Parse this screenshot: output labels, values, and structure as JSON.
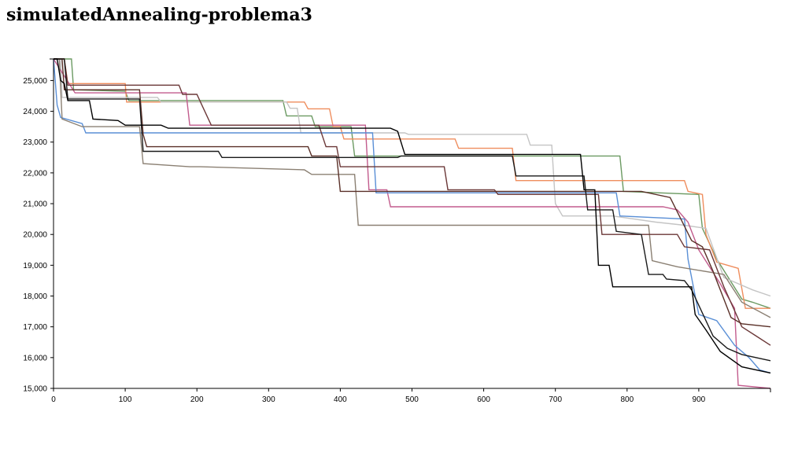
{
  "page": {
    "title": "simulatedAnnealing-problema3"
  },
  "chart_data": {
    "type": "line",
    "title": "simulatedAnnealing-problema3",
    "xlabel": "",
    "ylabel": "",
    "xlim": [
      0,
      1000
    ],
    "ylim": [
      15000,
      25700
    ],
    "grid": false,
    "x_ticks": [
      0,
      100,
      200,
      300,
      400,
      500,
      600,
      700,
      800,
      900
    ],
    "y_ticks": [
      15000,
      16000,
      17000,
      18000,
      19000,
      20000,
      21000,
      22000,
      23000,
      24000,
      25000
    ],
    "x_tick_labels": [
      "0",
      "100",
      "200",
      "300",
      "400",
      "500",
      "600",
      "700",
      "800",
      "900"
    ],
    "y_tick_labels": [
      "15,000",
      "16,000",
      "17,000",
      "18,000",
      "19,000",
      "20,000",
      "21,000",
      "22,000",
      "23,000",
      "24,000",
      "25,000"
    ],
    "series": [
      {
        "color": "#6b9a62",
        "points": [
          [
            0,
            25700
          ],
          [
            25,
            25700
          ],
          [
            28,
            24700
          ],
          [
            100,
            24650
          ],
          [
            105,
            24350
          ],
          [
            180,
            24350
          ],
          [
            320,
            24350
          ],
          [
            325,
            23850
          ],
          [
            360,
            23850
          ],
          [
            365,
            23500
          ],
          [
            415,
            23500
          ],
          [
            420,
            22550
          ],
          [
            790,
            22550
          ],
          [
            795,
            21400
          ],
          [
            900,
            21300
          ],
          [
            905,
            20200
          ],
          [
            925,
            19200
          ],
          [
            960,
            17900
          ],
          [
            975,
            17800
          ],
          [
            1000,
            17600
          ]
        ]
      },
      {
        "color": "#ef8d5d",
        "points": [
          [
            0,
            25700
          ],
          [
            15,
            25700
          ],
          [
            20,
            24900
          ],
          [
            100,
            24900
          ],
          [
            102,
            24300
          ],
          [
            350,
            24300
          ],
          [
            355,
            24080
          ],
          [
            385,
            24080
          ],
          [
            390,
            23500
          ],
          [
            400,
            23500
          ],
          [
            405,
            23100
          ],
          [
            560,
            23100
          ],
          [
            565,
            22800
          ],
          [
            640,
            22800
          ],
          [
            645,
            21750
          ],
          [
            880,
            21750
          ],
          [
            885,
            21400
          ],
          [
            905,
            21300
          ],
          [
            910,
            20000
          ],
          [
            925,
            19100
          ],
          [
            955,
            18900
          ],
          [
            965,
            17600
          ],
          [
            1000,
            17600
          ]
        ]
      },
      {
        "color": "#c4c4c4",
        "points": [
          [
            0,
            25700
          ],
          [
            10,
            25700
          ],
          [
            12,
            24450
          ],
          [
            145,
            24450
          ],
          [
            150,
            24300
          ],
          [
            325,
            24300
          ],
          [
            330,
            24100
          ],
          [
            340,
            24100
          ],
          [
            345,
            23300
          ],
          [
            490,
            23300
          ],
          [
            495,
            23250
          ],
          [
            660,
            23250
          ],
          [
            665,
            22900
          ],
          [
            695,
            22900
          ],
          [
            700,
            21000
          ],
          [
            710,
            20600
          ],
          [
            775,
            20600
          ],
          [
            780,
            20600
          ],
          [
            840,
            20400
          ],
          [
            880,
            20300
          ],
          [
            910,
            20200
          ],
          [
            935,
            18600
          ],
          [
            975,
            18200
          ],
          [
            1000,
            18000
          ]
        ]
      },
      {
        "color": "#c25c8d",
        "points": [
          [
            0,
            25700
          ],
          [
            30,
            24600
          ],
          [
            185,
            24600
          ],
          [
            190,
            23550
          ],
          [
            435,
            23550
          ],
          [
            440,
            21450
          ],
          [
            465,
            21450
          ],
          [
            470,
            20900
          ],
          [
            850,
            20900
          ],
          [
            870,
            20800
          ],
          [
            885,
            20400
          ],
          [
            900,
            19500
          ],
          [
            930,
            18400
          ],
          [
            950,
            17600
          ],
          [
            955,
            15100
          ],
          [
            1000,
            15000
          ]
        ]
      },
      {
        "color": "#5a8fd6",
        "points": [
          [
            0,
            25700
          ],
          [
            5,
            24200
          ],
          [
            10,
            23800
          ],
          [
            40,
            23600
          ],
          [
            45,
            23300
          ],
          [
            445,
            23300
          ],
          [
            450,
            21350
          ],
          [
            785,
            21350
          ],
          [
            790,
            20600
          ],
          [
            880,
            20500
          ],
          [
            885,
            19200
          ],
          [
            900,
            17400
          ],
          [
            925,
            17200
          ],
          [
            950,
            16400
          ],
          [
            970,
            16000
          ],
          [
            985,
            15600
          ],
          [
            1000,
            15500
          ]
        ]
      },
      {
        "color": "#8b8073",
        "points": [
          [
            0,
            25700
          ],
          [
            8,
            25700
          ],
          [
            12,
            23750
          ],
          [
            40,
            23500
          ],
          [
            120,
            23500
          ],
          [
            125,
            22300
          ],
          [
            190,
            22200
          ],
          [
            205,
            22200
          ],
          [
            350,
            22100
          ],
          [
            360,
            21950
          ],
          [
            420,
            21950
          ],
          [
            425,
            20300
          ],
          [
            830,
            20300
          ],
          [
            835,
            19150
          ],
          [
            870,
            18950
          ],
          [
            935,
            18700
          ],
          [
            960,
            17800
          ],
          [
            1000,
            17300
          ]
        ]
      },
      {
        "color": "#6b3838",
        "points": [
          [
            0,
            25700
          ],
          [
            15,
            25700
          ],
          [
            20,
            24850
          ],
          [
            175,
            24850
          ],
          [
            180,
            24550
          ],
          [
            200,
            24550
          ],
          [
            220,
            23550
          ],
          [
            370,
            23550
          ],
          [
            380,
            22850
          ],
          [
            395,
            22850
          ],
          [
            400,
            22200
          ],
          [
            545,
            22200
          ],
          [
            550,
            21450
          ],
          [
            615,
            21450
          ],
          [
            620,
            21300
          ],
          [
            760,
            21300
          ],
          [
            765,
            20000
          ],
          [
            870,
            20000
          ],
          [
            880,
            19600
          ],
          [
            915,
            19500
          ],
          [
            935,
            18300
          ],
          [
            960,
            17000
          ],
          [
            980,
            16700
          ],
          [
            1000,
            16400
          ]
        ]
      },
      {
        "color": "#5a3028",
        "points": [
          [
            0,
            25700
          ],
          [
            12,
            25700
          ],
          [
            15,
            24700
          ],
          [
            40,
            24700
          ],
          [
            120,
            24700
          ],
          [
            125,
            23250
          ],
          [
            130,
            22850
          ],
          [
            355,
            22850
          ],
          [
            360,
            22550
          ],
          [
            395,
            22550
          ],
          [
            400,
            21400
          ],
          [
            510,
            21400
          ],
          [
            600,
            21400
          ],
          [
            820,
            21400
          ],
          [
            860,
            21200
          ],
          [
            890,
            19800
          ],
          [
            905,
            19600
          ],
          [
            920,
            18800
          ],
          [
            945,
            17300
          ],
          [
            960,
            17100
          ],
          [
            1000,
            17000
          ]
        ]
      },
      {
        "color": "#1a1a1a",
        "points": [
          [
            0,
            25700
          ],
          [
            15,
            25700
          ],
          [
            20,
            24400
          ],
          [
            120,
            24400
          ],
          [
            125,
            22700
          ],
          [
            230,
            22700
          ],
          [
            235,
            22500
          ],
          [
            280,
            22500
          ],
          [
            400,
            22500
          ],
          [
            480,
            22500
          ],
          [
            485,
            22550
          ],
          [
            640,
            22550
          ],
          [
            645,
            21900
          ],
          [
            740,
            21900
          ],
          [
            745,
            20800
          ],
          [
            780,
            20800
          ],
          [
            785,
            20100
          ],
          [
            820,
            20000
          ],
          [
            830,
            18700
          ],
          [
            850,
            18700
          ],
          [
            855,
            18550
          ],
          [
            880,
            18500
          ],
          [
            890,
            18200
          ],
          [
            920,
            16700
          ],
          [
            940,
            16300
          ],
          [
            960,
            16100
          ],
          [
            1000,
            15900
          ]
        ]
      },
      {
        "color": "#000000",
        "points": [
          [
            0,
            25700
          ],
          [
            5,
            25700
          ],
          [
            10,
            25000
          ],
          [
            15,
            24900
          ],
          [
            20,
            24350
          ],
          [
            50,
            24350
          ],
          [
            55,
            23750
          ],
          [
            90,
            23700
          ],
          [
            100,
            23550
          ],
          [
            150,
            23550
          ],
          [
            160,
            23450
          ],
          [
            340,
            23450
          ],
          [
            470,
            23450
          ],
          [
            480,
            23350
          ],
          [
            490,
            22600
          ],
          [
            640,
            22600
          ],
          [
            660,
            22600
          ],
          [
            735,
            22600
          ],
          [
            740,
            21450
          ],
          [
            755,
            21450
          ],
          [
            760,
            19000
          ],
          [
            775,
            19000
          ],
          [
            780,
            18300
          ],
          [
            890,
            18300
          ],
          [
            895,
            17400
          ],
          [
            910,
            16900
          ],
          [
            930,
            16200
          ],
          [
            960,
            15700
          ],
          [
            1000,
            15500
          ]
        ]
      }
    ]
  }
}
